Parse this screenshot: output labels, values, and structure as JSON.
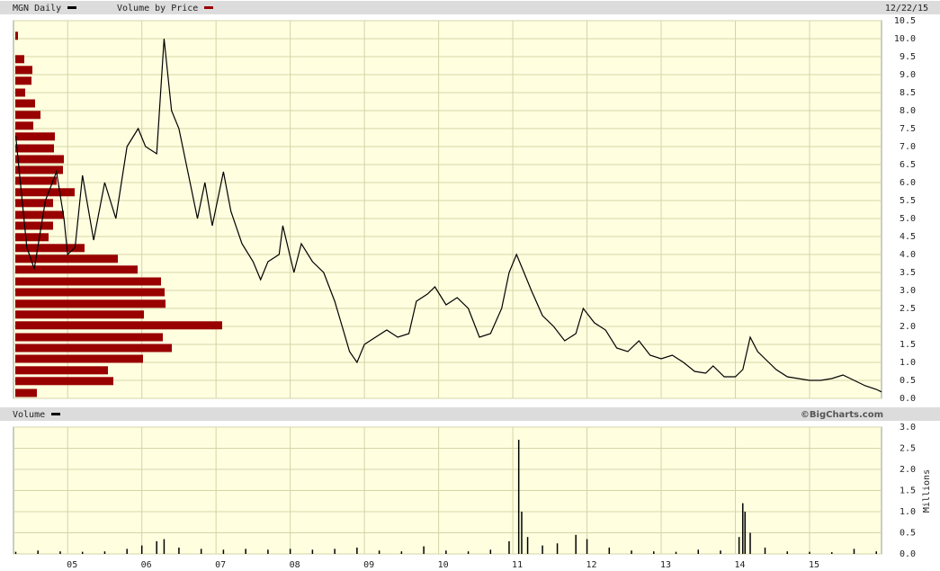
{
  "chart_data": [
    {
      "type": "line",
      "date": "12/22/15",
      "series": [
        {
          "name": "MGN Daily",
          "color": "#000000",
          "x": [
            2004.3,
            2004.45,
            2004.55,
            2004.7,
            2004.85,
            2004.95,
            2005.0,
            2005.1,
            2005.2,
            2005.35,
            2005.5,
            2005.65,
            2005.8,
            2005.95,
            2006.05,
            2006.2,
            2006.3,
            2006.4,
            2006.5,
            2006.65,
            2006.75,
            2006.85,
            2006.95,
            2007.1,
            2007.2,
            2007.35,
            2007.5,
            2007.6,
            2007.7,
            2007.85,
            2007.9,
            2008.05,
            2008.15,
            2008.3,
            2008.45,
            2008.6,
            2008.7,
            2008.8,
            2008.9,
            2009.0,
            2009.15,
            2009.3,
            2009.45,
            2009.6,
            2009.7,
            2009.85,
            2009.95,
            2010.1,
            2010.25,
            2010.4,
            2010.55,
            2010.7,
            2010.85,
            2010.95,
            2011.05,
            2011.15,
            2011.25,
            2011.4,
            2011.55,
            2011.7,
            2011.85,
            2011.95,
            2012.1,
            2012.25,
            2012.4,
            2012.55,
            2012.7,
            2012.85,
            2013.0,
            2013.15,
            2013.3,
            2013.45,
            2013.6,
            2013.7,
            2013.85,
            2014.0,
            2014.1,
            2014.2,
            2014.3,
            2014.4,
            2014.55,
            2014.7,
            2014.85,
            2015.0,
            2015.15,
            2015.3,
            2015.45,
            2015.6,
            2015.75,
            2015.9,
            2015.97
          ],
          "values": [
            7.3,
            4.2,
            3.6,
            5.5,
            6.3,
            5.0,
            4.0,
            4.2,
            6.2,
            4.4,
            6.0,
            5.0,
            7.0,
            7.5,
            7.0,
            6.8,
            10.0,
            8.0,
            7.5,
            6.0,
            5.0,
            6.0,
            4.8,
            6.3,
            5.2,
            4.3,
            3.8,
            3.3,
            3.8,
            4.0,
            4.8,
            3.5,
            4.3,
            3.8,
            3.5,
            2.7,
            2.0,
            1.3,
            1.0,
            1.5,
            1.7,
            1.9,
            1.7,
            1.8,
            2.7,
            2.9,
            3.1,
            2.6,
            2.8,
            2.5,
            1.7,
            1.8,
            2.5,
            3.5,
            4.0,
            3.5,
            3.0,
            2.3,
            2.0,
            1.6,
            1.8,
            2.5,
            2.1,
            1.9,
            1.4,
            1.3,
            1.6,
            1.2,
            1.1,
            1.2,
            1.0,
            0.75,
            0.7,
            0.9,
            0.6,
            0.6,
            0.8,
            1.7,
            1.3,
            1.1,
            0.8,
            0.6,
            0.55,
            0.5,
            0.5,
            0.55,
            0.65,
            0.5,
            0.35,
            0.25,
            0.18
          ]
        }
      ],
      "volume_by_price": {
        "name": "Volume by Price",
        "color": "#990000",
        "prices": [
          10.08,
          9.43,
          9.13,
          8.83,
          8.5,
          8.2,
          7.88,
          7.58,
          7.28,
          6.95,
          6.65,
          6.35,
          6.05,
          5.73,
          5.43,
          5.1,
          4.8,
          4.48,
          4.18,
          3.88,
          3.58,
          3.25,
          2.95,
          2.63,
          2.33,
          2.03,
          1.7,
          1.4,
          1.1,
          0.78,
          0.48,
          0.15
        ],
        "values": [
          3,
          10,
          19,
          18,
          11,
          22,
          28,
          20,
          44,
          43,
          54,
          53,
          46,
          66,
          42,
          54,
          42,
          37,
          77,
          114,
          136,
          162,
          166,
          167,
          143,
          230,
          164,
          174,
          142,
          103,
          109,
          24
        ]
      },
      "xlim": [
        2004.27,
        2015.97
      ],
      "xticks": [
        2005,
        2006,
        2007,
        2008,
        2009,
        2010,
        2011,
        2012,
        2013,
        2014,
        2015
      ],
      "ylim": [
        0,
        10.5
      ],
      "yticks": [
        {
          "value": 0,
          "label": "0.0"
        },
        0.5,
        {
          "value": 1,
          "label": "1.0"
        },
        1.5,
        {
          "value": 2,
          "label": "2.0"
        },
        2.5,
        {
          "value": 3,
          "label": "3.0"
        },
        3.5,
        {
          "value": 4,
          "label": "4.0"
        },
        4.5,
        {
          "value": 5,
          "label": "5.0"
        },
        5.5,
        {
          "value": 6,
          "label": "6.0"
        },
        6.5,
        {
          "value": 7,
          "label": "7.0"
        },
        7.5,
        {
          "value": 8,
          "label": "8.0"
        },
        8.5,
        {
          "value": 9,
          "label": "9.0"
        },
        9.5,
        {
          "value": 10,
          "label": "10.0"
        },
        10.5
      ],
      "grid": true
    },
    {
      "type": "bar",
      "source": "©BigCharts.com",
      "ylabel": "Millions",
      "series": [
        {
          "name": "Volume",
          "color": "#000000",
          "x": [
            2004.3,
            2004.6,
            2004.9,
            2005.2,
            2005.5,
            2005.8,
            2006.0,
            2006.2,
            2006.3,
            2006.5,
            2006.8,
            2007.1,
            2007.4,
            2007.7,
            2008.0,
            2008.3,
            2008.6,
            2008.9,
            2009.2,
            2009.5,
            2009.8,
            2010.1,
            2010.4,
            2010.7,
            2010.95,
            2011.08,
            2011.12,
            2011.2,
            2011.4,
            2011.6,
            2011.85,
            2012.0,
            2012.3,
            2012.6,
            2012.9,
            2013.2,
            2013.5,
            2013.8,
            2014.05,
            2014.1,
            2014.13,
            2014.2,
            2014.4,
            2014.7,
            2015.0,
            2015.3,
            2015.6,
            2015.9
          ],
          "values": [
            0.05,
            0.08,
            0.06,
            0.05,
            0.06,
            0.12,
            0.2,
            0.3,
            0.35,
            0.15,
            0.12,
            0.1,
            0.12,
            0.1,
            0.12,
            0.1,
            0.12,
            0.15,
            0.08,
            0.06,
            0.18,
            0.08,
            0.06,
            0.1,
            0.3,
            2.7,
            1.0,
            0.4,
            0.2,
            0.25,
            0.45,
            0.35,
            0.15,
            0.08,
            0.06,
            0.05,
            0.1,
            0.08,
            0.4,
            1.2,
            1.0,
            0.5,
            0.15,
            0.06,
            0.05,
            0.04,
            0.12,
            0.06
          ]
        }
      ],
      "xlim": [
        2004.27,
        2015.97
      ],
      "xticks": [
        {
          "value": 2005,
          "label": "05"
        },
        {
          "value": 2006,
          "label": "06"
        },
        {
          "value": 2007,
          "label": "07"
        },
        {
          "value": 2008,
          "label": "08"
        },
        {
          "value": 2009,
          "label": "09"
        },
        {
          "value": 2010,
          "label": "10"
        },
        {
          "value": 2011,
          "label": "11"
        },
        {
          "value": 2012,
          "label": "12"
        },
        {
          "value": 2013,
          "label": "13"
        },
        {
          "value": 2014,
          "label": "14"
        },
        {
          "value": 2015,
          "label": "15"
        }
      ],
      "ylim": [
        0,
        3
      ],
      "yticks": [
        {
          "value": 0,
          "label": "0.0"
        },
        0.5,
        {
          "value": 1,
          "label": "1.0"
        },
        1.5,
        {
          "value": 2,
          "label": "2.0"
        },
        2.5,
        {
          "value": 3,
          "label": "3.0"
        }
      ],
      "grid": true
    }
  ]
}
